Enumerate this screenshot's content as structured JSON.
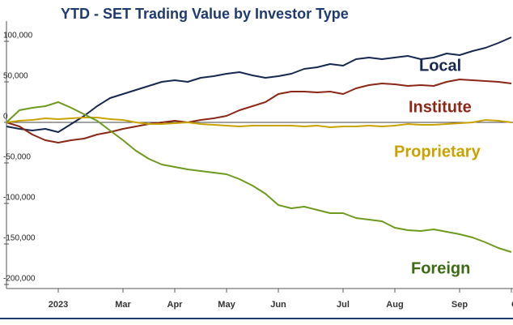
{
  "chart_data": {
    "type": "line",
    "title": "YTD - SET Trading Value by Investor Type",
    "categories": [
      null,
      null,
      null,
      null,
      "2023",
      null,
      null,
      null,
      null,
      "Mar",
      null,
      null,
      null,
      "Apr",
      null,
      null,
      null,
      "May",
      null,
      null,
      null,
      "Jun",
      null,
      null,
      null,
      null,
      "Jul",
      null,
      null,
      null,
      "Aug",
      null,
      null,
      null,
      null,
      "Sep",
      null,
      null,
      null,
      "O"
    ],
    "series": [
      {
        "name": "Local",
        "color": "#16284e",
        "values": [
          -5000,
          -8000,
          -10000,
          -8000,
          -12000,
          -2000,
          8000,
          20000,
          30000,
          35000,
          40000,
          45000,
          50000,
          52000,
          50000,
          55000,
          57000,
          60000,
          62000,
          58000,
          55000,
          57000,
          60000,
          66000,
          68000,
          72000,
          70000,
          78000,
          80000,
          78000,
          80000,
          82000,
          78000,
          80000,
          85000,
          83000,
          88000,
          92000,
          98000,
          105000
        ]
      },
      {
        "name": "Institute",
        "color": "#8a2716",
        "values": [
          0,
          -5000,
          -15000,
          -22000,
          -25000,
          -22000,
          -20000,
          -15000,
          -12000,
          -8000,
          -5000,
          -2000,
          0,
          2000,
          0,
          3000,
          5000,
          8000,
          15000,
          20000,
          25000,
          35000,
          38000,
          38000,
          37000,
          38000,
          35000,
          42000,
          46000,
          48000,
          47000,
          45000,
          46000,
          45000,
          50000,
          53000,
          52000,
          51000,
          50000,
          48000
        ]
      },
      {
        "name": "Proprietary",
        "color": "#c9a200",
        "values": [
          0,
          2000,
          3000,
          5000,
          4000,
          5000,
          6000,
          6000,
          4000,
          3000,
          0,
          -2000,
          -2000,
          -1000,
          0,
          -2000,
          -3000,
          -4000,
          -5000,
          -4000,
          -4000,
          -4000,
          -4000,
          -5000,
          -4000,
          -6000,
          -5000,
          -5000,
          -4000,
          -5000,
          -4000,
          -2000,
          -3000,
          -3000,
          -2000,
          -1000,
          0,
          3000,
          2000,
          0
        ]
      },
      {
        "name": "Foreign",
        "color": "#6e9a1e",
        "values": [
          0,
          15000,
          18000,
          20000,
          25000,
          18000,
          10000,
          2000,
          -10000,
          -22000,
          -35000,
          -45000,
          -52000,
          -55000,
          -58000,
          -60000,
          -62000,
          -64000,
          -70000,
          -78000,
          -88000,
          -102000,
          -106000,
          -104000,
          -108000,
          -112000,
          -112000,
          -118000,
          -120000,
          -122000,
          -130000,
          -133000,
          -134000,
          -132000,
          -135000,
          -138000,
          -142000,
          -148000,
          -155000,
          -160000
        ]
      }
    ],
    "ylim": [
      -205000,
      125000
    ],
    "yticks": [
      {
        "value": -200000,
        "label": "-200,000"
      },
      {
        "value": -150000,
        "label": "-150,000"
      },
      {
        "value": -100000,
        "label": "-100,000"
      },
      {
        "value": -50000,
        "label": "-50,000"
      },
      0,
      {
        "value": 50000,
        "label": "50,000"
      },
      {
        "value": 100000,
        "label": "100,000"
      }
    ]
  }
}
